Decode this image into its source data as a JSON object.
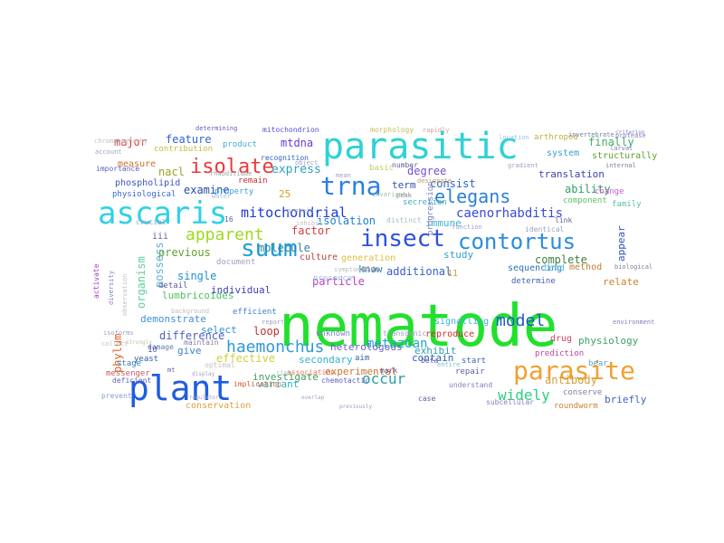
{
  "wordcloud": {
    "words": [
      {
        "text": "nematode",
        "color": "#22e02e"
      },
      {
        "text": "parasitic",
        "color": "#2fd2d4"
      },
      {
        "text": "ascaris",
        "color": "#2fd2e6"
      },
      {
        "text": "plant",
        "color": "#1f5ce0"
      },
      {
        "text": "trna",
        "color": "#2a7fe6"
      },
      {
        "text": "insect",
        "color": "#2d50e0"
      },
      {
        "text": "contortus",
        "color": "#2a8ce0"
      },
      {
        "text": "parasite",
        "color": "#f0a030"
      },
      {
        "text": "suum",
        "color": "#1ea0d8"
      },
      {
        "text": "isolate",
        "color": "#ea3a3a"
      },
      {
        "text": "elegans",
        "color": "#2a7fd8"
      },
      {
        "text": "haemonchus",
        "color": "#2e9ad8"
      },
      {
        "text": "apparent",
        "color": "#a0d820"
      },
      {
        "text": "mitochondrial",
        "color": "#1a3ad8"
      },
      {
        "text": "model",
        "color": "#1a58c8"
      },
      {
        "text": "occur",
        "color": "#2aa0a0"
      },
      {
        "text": "widely",
        "color": "#2ad080"
      },
      {
        "text": "metazoan",
        "color": "#20a8c0"
      },
      {
        "text": "caenorhabditis",
        "color": "#3a4ad8"
      },
      {
        "text": "major",
        "color": "#d84040"
      },
      {
        "text": "feature",
        "color": "#3060d8"
      },
      {
        "text": "mtdna",
        "color": "#6a3ad8"
      },
      {
        "text": "express",
        "color": "#30a0c0"
      },
      {
        "text": "examine",
        "color": "#2a48a8"
      },
      {
        "text": "nacl",
        "color": "#a0a020"
      },
      {
        "text": "phospholipid",
        "color": "#3a58c0"
      },
      {
        "text": "physiological",
        "color": "#3a68d0"
      },
      {
        "text": "measure",
        "color": "#d07030"
      },
      {
        "text": "contribution",
        "color": "#c0c040"
      },
      {
        "text": "product",
        "color": "#40b0d0"
      },
      {
        "text": "recognition",
        "color": "#3060c0"
      },
      {
        "text": "remain",
        "color": "#c83030"
      },
      {
        "text": "property",
        "color": "#40a0e0"
      },
      {
        "text": "25",
        "color": "#d0a020"
      },
      {
        "text": "consist",
        "color": "#3060d0"
      },
      {
        "text": "ability",
        "color": "#30a060"
      },
      {
        "text": "finally",
        "color": "#40b060"
      },
      {
        "text": "translation",
        "color": "#4040b0"
      },
      {
        "text": "system",
        "color": "#40a0d0"
      },
      {
        "text": "arthropod",
        "color": "#c0b040"
      },
      {
        "text": "structurally",
        "color": "#60a030"
      },
      {
        "text": "degree",
        "color": "#7050d0"
      },
      {
        "text": "term",
        "color": "#3050b0"
      },
      {
        "text": "component",
        "color": "#60c060"
      },
      {
        "text": "family",
        "color": "#60c0a0"
      },
      {
        "text": "change",
        "color": "#c060d0"
      },
      {
        "text": "immune",
        "color": "#40b0d0"
      },
      {
        "text": "isolation",
        "color": "#2080d0"
      },
      {
        "text": "factor",
        "color": "#d04040"
      },
      {
        "text": "molecule",
        "color": "#3080a0"
      },
      {
        "text": "previous",
        "color": "#60a030"
      },
      {
        "text": "single",
        "color": "#2090d0"
      },
      {
        "text": "possess",
        "color": "#60b0d0"
      },
      {
        "text": "organism",
        "color": "#60d0a0"
      },
      {
        "text": "phylum",
        "color": "#e06020"
      },
      {
        "text": "detail",
        "color": "#6060a0"
      },
      {
        "text": "lumbricoides",
        "color": "#50c060"
      },
      {
        "text": "individual",
        "color": "#4040c0"
      },
      {
        "text": "particle",
        "color": "#c040c0"
      },
      {
        "text": "additional",
        "color": "#3060d0"
      },
      {
        "text": "know",
        "color": "#2080b0"
      },
      {
        "text": "study",
        "color": "#30a0d0"
      },
      {
        "text": "complete",
        "color": "#408040"
      },
      {
        "text": "appear",
        "color": "#3050c0"
      },
      {
        "text": "sequencing",
        "color": "#3070c0"
      },
      {
        "text": "lead",
        "color": "#60c0e0"
      },
      {
        "text": "determine",
        "color": "#4060b0"
      },
      {
        "text": "relate",
        "color": "#d08030"
      },
      {
        "text": "demonstrate",
        "color": "#4090e0"
      },
      {
        "text": "select",
        "color": "#3090d0"
      },
      {
        "text": "loop",
        "color": "#c03030"
      },
      {
        "text": "difference",
        "color": "#5060c0"
      },
      {
        "text": "give",
        "color": "#4080d0"
      },
      {
        "text": "effective",
        "color": "#d0d040"
      },
      {
        "text": "secondary",
        "color": "#30b0d0"
      },
      {
        "text": "heterologous",
        "color": "#7060d0"
      },
      {
        "text": "experimental",
        "color": "#d07030"
      },
      {
        "text": "contain",
        "color": "#3060b0"
      },
      {
        "text": "exhibit",
        "color": "#30a0b0"
      },
      {
        "text": "investigate",
        "color": "#40a060"
      },
      {
        "text": "variant",
        "color": "#30b0c0"
      },
      {
        "text": "conservation",
        "color": "#e0a040"
      },
      {
        "text": "reproduce",
        "color": "#d03030"
      },
      {
        "text": "drug",
        "color": "#d04060"
      },
      {
        "text": "physiology",
        "color": "#40a060"
      },
      {
        "text": "antibody",
        "color": "#d0a040"
      },
      {
        "text": "repair",
        "color": "#6060a0"
      },
      {
        "text": "start",
        "color": "#4060c0"
      },
      {
        "text": "briefly",
        "color": "#4060c0"
      },
      {
        "text": "roundworm",
        "color": "#d08030"
      },
      {
        "text": "conserve",
        "color": "#8080a0"
      },
      {
        "text": "prediction",
        "color": "#c040a0"
      },
      {
        "text": "bear",
        "color": "#60a0d0"
      },
      {
        "text": "signalling",
        "color": "#40b0e0"
      },
      {
        "text": "method",
        "color": "#c08030"
      },
      {
        "text": "generation",
        "color": "#e0c040"
      },
      {
        "text": "culture",
        "color": "#c04040"
      },
      {
        "text": "secretion",
        "color": "#40b0c0"
      },
      {
        "text": "distinct",
        "color": "#a0c0c0"
      },
      {
        "text": "determining",
        "color": "#6060c0"
      },
      {
        "text": "mitochondrion",
        "color": "#5050d0"
      },
      {
        "text": "morphology",
        "color": "#c0c060"
      },
      {
        "text": "rapidly",
        "color": "#d0a0a0"
      },
      {
        "text": "invertebrate",
        "color": "#7080a0"
      },
      {
        "text": "importance",
        "color": "#6060c0"
      },
      {
        "text": "account",
        "color": "#a0a0c0"
      },
      {
        "text": "basic",
        "color": "#c0d060"
      },
      {
        "text": "number",
        "color": "#6060a0"
      },
      {
        "text": "stage",
        "color": "#3080c0"
      },
      {
        "text": "yeast",
        "color": "#3060a0"
      },
      {
        "text": "damage",
        "color": "#6080a0"
      },
      {
        "text": "messenger",
        "color": "#c06060"
      },
      {
        "text": "deficient",
        "color": "#6060c0"
      },
      {
        "text": "prevent",
        "color": "#80a0d0"
      },
      {
        "text": "implication",
        "color": "#d06030"
      },
      {
        "text": "mark",
        "color": "#6060a0"
      },
      {
        "text": "aim",
        "color": "#3060a0"
      },
      {
        "text": "understand",
        "color": "#8080c0"
      },
      {
        "text": "subcellular",
        "color": "#8080c0"
      },
      {
        "text": "case",
        "color": "#6060a0"
      },
      {
        "text": "chemotactic",
        "color": "#6060c0"
      },
      {
        "text": "activate",
        "color": "#a040c0"
      },
      {
        "text": "diversity",
        "color": "#8080c0"
      },
      {
        "text": "observation",
        "color": "#c0c0c0"
      },
      {
        "text": "presence",
        "color": "#a0c0e0"
      },
      {
        "text": "unknown",
        "color": "#8080c0"
      },
      {
        "text": "transgenic",
        "color": "#a0a0c0"
      },
      {
        "text": "efficient",
        "color": "#4080d0"
      },
      {
        "text": "report",
        "color": "#a0a0c0"
      },
      {
        "text": "maintain",
        "color": "#8080a0"
      },
      {
        "text": "optimal",
        "color": "#c0c0c0"
      },
      {
        "text": "crucial",
        "color": "#a0a0c0"
      },
      {
        "text": "link",
        "color": "#6060a0"
      },
      {
        "text": "identical",
        "color": "#a0a0c0"
      },
      {
        "text": "document",
        "color": "#a0a0c0"
      },
      {
        "text": "iii",
        "color": "#6060a0"
      },
      {
        "text": "11",
        "color": "#c0a040"
      },
      {
        "text": "16",
        "color": "#6060a0"
      },
      {
        "text": "10",
        "color": "#6060c0"
      },
      {
        "text": "mt",
        "color": "#6060a0"
      },
      {
        "text": "rise",
        "color": "#c0c0c0"
      },
      {
        "text": "beta",
        "color": "#6060a0"
      },
      {
        "text": "entire",
        "color": "#80c0c0"
      },
      {
        "text": "progression",
        "color": "#8080c0"
      },
      {
        "text": "environment",
        "color": "#8080c0"
      },
      {
        "text": "internal",
        "color": "#8080a0"
      },
      {
        "text": "protease",
        "color": "#8080c0"
      },
      {
        "text": "larval",
        "color": "#8080c0"
      },
      {
        "text": "criterion",
        "color": "#8080c0"
      },
      {
        "text": "location",
        "color": "#a0c0e0"
      },
      {
        "text": "gradient",
        "color": "#a0a0c0"
      },
      {
        "text": "rhabditidae",
        "color": "#a0a0a0"
      },
      {
        "text": "water",
        "color": "#a0c0e0"
      },
      {
        "text": "peak",
        "color": "#8080a0"
      },
      {
        "text": "designate",
        "color": "#c0a060"
      },
      {
        "text": "invariant",
        "color": "#a0c0a0"
      },
      {
        "text": "inhibit",
        "color": "#c0c0c0"
      },
      {
        "text": "background",
        "color": "#c0c0c0"
      },
      {
        "text": "isoforms",
        "color": "#a0a0c0"
      },
      {
        "text": "collect",
        "color": "#c0c0c0"
      },
      {
        "text": "strongly",
        "color": "#c0c0a0"
      },
      {
        "text": "display",
        "color": "#a0a0c0"
      },
      {
        "text": "overlap",
        "color": "#a0a0c0"
      },
      {
        "text": "previously",
        "color": "#a0a0c0"
      },
      {
        "text": "regulator",
        "color": "#a0a0c0"
      },
      {
        "text": "biological",
        "color": "#8080a0"
      },
      {
        "text": "function",
        "color": "#a0a0c0"
      },
      {
        "text": "symptom",
        "color": "#c0c0c0"
      },
      {
        "text": "mean",
        "color": "#a0a0c0"
      },
      {
        "text": "protein",
        "color": "#a0a0c0"
      },
      {
        "text": "association",
        "color": "#e08060"
      },
      {
        "text": "chromatography",
        "color": "#c0c0c0"
      },
      {
        "text": "object",
        "color": "#a0a0c0"
      },
      {
        "text": "live",
        "color": "#8080a0"
      },
      {
        "text": "wide",
        "color": "#a0a0a0"
      },
      {
        "text": "show",
        "color": "#a0a0c0"
      }
    ]
  }
}
